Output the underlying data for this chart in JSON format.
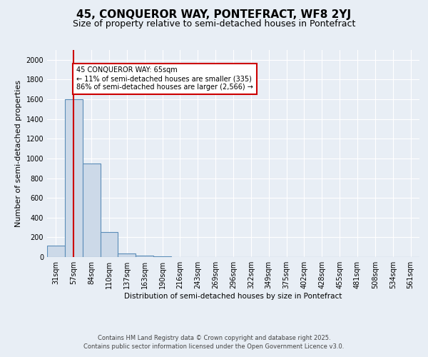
{
  "title1": "45, CONQUEROR WAY, PONTEFRACT, WF8 2YJ",
  "title2": "Size of property relative to semi-detached houses in Pontefract",
  "xlabel": "Distribution of semi-detached houses by size in Pontefract",
  "ylabel": "Number of semi-detached properties",
  "bins": [
    "31sqm",
    "57sqm",
    "84sqm",
    "110sqm",
    "137sqm",
    "163sqm",
    "190sqm",
    "216sqm",
    "243sqm",
    "269sqm",
    "296sqm",
    "322sqm",
    "349sqm",
    "375sqm",
    "402sqm",
    "428sqm",
    "455sqm",
    "481sqm",
    "508sqm",
    "534sqm",
    "561sqm"
  ],
  "values": [
    115,
    1600,
    950,
    255,
    38,
    15,
    5,
    0,
    0,
    0,
    0,
    0,
    0,
    0,
    0,
    0,
    0,
    0,
    0,
    0,
    0
  ],
  "bar_color": "#ccd9e8",
  "bar_edge_color": "#5b8db8",
  "red_line_x": 1.0,
  "annotation_title": "45 CONQUEROR WAY: 65sqm",
  "annotation_line1": "← 11% of semi-detached houses are smaller (335)",
  "annotation_line2": "86% of semi-detached houses are larger (2,566) →",
  "annotation_box_color": "#ffffff",
  "annotation_box_edge": "#cc0000",
  "red_line_color": "#cc0000",
  "ylim": [
    0,
    2100
  ],
  "yticks": [
    0,
    200,
    400,
    600,
    800,
    1000,
    1200,
    1400,
    1600,
    1800,
    2000
  ],
  "footer1": "Contains HM Land Registry data © Crown copyright and database right 2025.",
  "footer2": "Contains public sector information licensed under the Open Government Licence v3.0.",
  "bg_color": "#e8eef5",
  "grid_color": "#ffffff",
  "title1_fontsize": 11,
  "title2_fontsize": 9,
  "axis_fontsize": 7.5,
  "tick_fontsize": 7,
  "ylabel_fontsize": 8
}
